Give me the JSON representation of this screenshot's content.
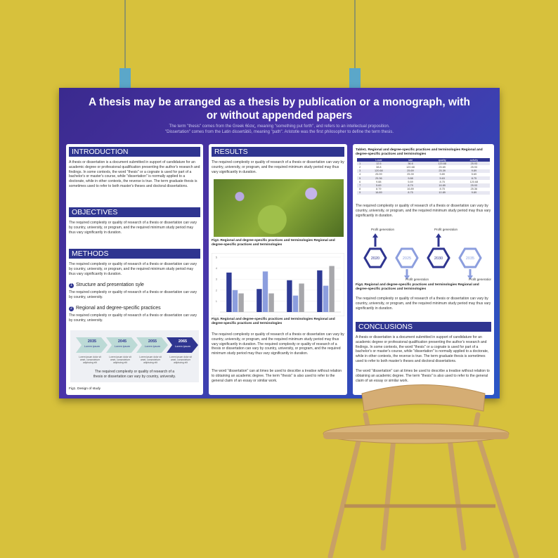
{
  "poster": {
    "title": "A thesis may be arranged as a thesis by publication or a monograph, with or without appended papers",
    "subtitle": [
      "The term \"thesis\" comes from the Greek θέσις, meaning \"something put forth\", and refers to an intellectual proposition.",
      "\"Dissertation\" comes from the Latin dissertātiō, meaning \"path\". Aristotle was the first philosopher to define the term thesis."
    ]
  },
  "introduction": {
    "heading": "INTRODUCTION",
    "text": "A thesis or dissertation is a document submitted in support of candidature for an academic degree or professional qualification presenting the author's research and findings. In some contexts, the word \"thesis\" or a cognate is used for part of a bachelor's or master's course, while \"dissertation\" is normally applied to a doctorate, while in other contexts, the reverse is true. The term graduate thesis is sometimes used to refer to both master's theses and doctoral dissertations."
  },
  "objectives": {
    "heading": "OBJECTIVES",
    "text": "The required complexity or quality of research of a thesis or dissertation can vary by country, university, or program, and the required minimum study period may thus vary significantly in duration."
  },
  "methods": {
    "heading": "METHODS",
    "text": "The required complexity or quality of research of a thesis or dissertation can vary by country, university, or program, and the required minimum study period may thus vary significantly in duration.",
    "items": [
      {
        "number": "1",
        "title": "Structure and presentation syle",
        "text": "The required complexity or quality of research of a thesis or dissertation can vary by country, university."
      },
      {
        "number": "2",
        "title": "Regional and degree-specific practices",
        "text": "The required complexity or quality of research of a thesis or dissertation can vary by country, university."
      }
    ],
    "timeline": [
      {
        "year": "2035",
        "label": "Lorem ipsum",
        "text": "Lorem ipsum dolor sit amet, consectetuer adipiscing elit"
      },
      {
        "year": "2045",
        "label": "Lorem ipsum",
        "text": "Lorem ipsum dolor sit amet, consectetuer adipiscing elit"
      },
      {
        "year": "2055",
        "label": "Lorem ipsum",
        "text": "Lorem ipsum dolor sit amet, consectetuer adipiscing elit"
      },
      {
        "year": "2065",
        "label": "Lorem ipsum",
        "text": "Lorem ipsum dolor sit amet, consectetuer adipiscing elit"
      }
    ],
    "note": "The required complexity or quality of research of a thesis or dissertation can vary by country, university.",
    "caption": "Fig1. Design of study"
  },
  "results": {
    "heading": "RESULTS",
    "text": "The required complexity or quality of research of a thesis or dissertation can vary by country, university, or program, and the required minimum study period may thus vary significantly in duration.",
    "photo_caption": "Fig2. Regional and degree-specific practices and terminologies Regional and degree-specific practices and terminologies",
    "chart": {
      "ylim": [
        0,
        5
      ],
      "yticks": [
        1,
        2,
        3,
        4,
        5
      ],
      "series": [
        {
          "color": "#2e3a94",
          "values": [
            3.6,
            2.1,
            2.9,
            3.8
          ]
        },
        {
          "color": "#8c9ede",
          "values": [
            2.0,
            3.7,
            1.5,
            2.4
          ]
        },
        {
          "color": "#a7a7ab",
          "values": [
            1.7,
            1.7,
            2.6,
            4.2
          ]
        }
      ]
    },
    "chart_caption": "Fig3. Regional and degree-specific practices and terminologies Regional and degree-specific practices and terminologies",
    "text2": "The required complexity or quality of research of a thesis or dissertation can vary by country, university, or program, and the required minimum study period may thus vary significantly in duration. The required complexity or quality of research of a thesis or dissertation can vary by country, university, or program, and the required minimum study period may thus vary significantly in duration.",
    "text3": "The word \"dissertation\" can at times be used to describe a treatise without relation to obtaining an academic degree. The term \"thesis\" is also used to refer to the general claim of an essay or similar work."
  },
  "analysis": {
    "table_caption": "Table1. Regional and degree-specific practices and terminologies Regional and degree-specific practices and terminologies",
    "table": {
      "header": [
        "",
        "Local",
        "rate",
        "quality",
        "activity"
      ],
      "rows": [
        [
          "1",
          "12.5",
          "36.6",
          "120.68",
          "25.93"
        ],
        [
          "2",
          "38.8",
          "120.68",
          "25.69",
          "25.93"
        ],
        [
          "3",
          "120.68",
          "25.69",
          "25.39",
          "9.89"
        ],
        [
          "4",
          "25.99",
          "25.39",
          "9.89",
          "5.69"
        ],
        [
          "5",
          "25.36",
          "9.88",
          "5.63",
          "8.75"
        ],
        [
          "6",
          "9.88",
          "5.69",
          "8.75",
          "120.68"
        ],
        [
          "7",
          "5.69",
          "8.79",
          "16.89",
          "25.93"
        ],
        [
          "8",
          "8.79",
          "16.89",
          "8.75",
          "25.36"
        ],
        [
          "9",
          "16.89",
          "8.75",
          "10.89",
          "9.89"
        ]
      ]
    },
    "text": "The required complexity or quality of research of a thesis or dissertation can vary by country, university, or program, and the required minimum study period may thus vary significantly in duration.",
    "steps": [
      {
        "year": "2020",
        "label": "Profit generation"
      },
      {
        "year": "2025",
        "label": "Profit generation"
      },
      {
        "year": "2030",
        "label": "Profit generation"
      },
      {
        "year": "2035",
        "label": "Profit generation"
      }
    ],
    "steps_caption": "Fig4. Regional and degree-specific practices and terminologies Regional and degree-specific practices and terminologies",
    "text2": "The required complexity or quality of research of a thesis or dissertation can vary by country, university, or program, and the required minimum study period may thus vary significantly in duration."
  },
  "conclusions": {
    "heading": "CONCLUSIONS",
    "text": "A thesis or dissertation is a document submitted in support of candidature for an academic degree or professional qualification presenting the author's research and findings. In some contexts, the word \"thesis\" or a cognate is used for part of a bachelor's or master's course, while \"dissertation\" is normally applied to a doctorate, while in other contexts, the reverse is true. The term graduate thesis is sometimes used to refer to both master's theses and doctoral dissertations.",
    "text2": "The word \"dissertation\" can at times be used to describe a treatise without relation to obtaining an academic degree. The term \"thesis\" is also used to refer to the general claim of an essay or similar work."
  }
}
